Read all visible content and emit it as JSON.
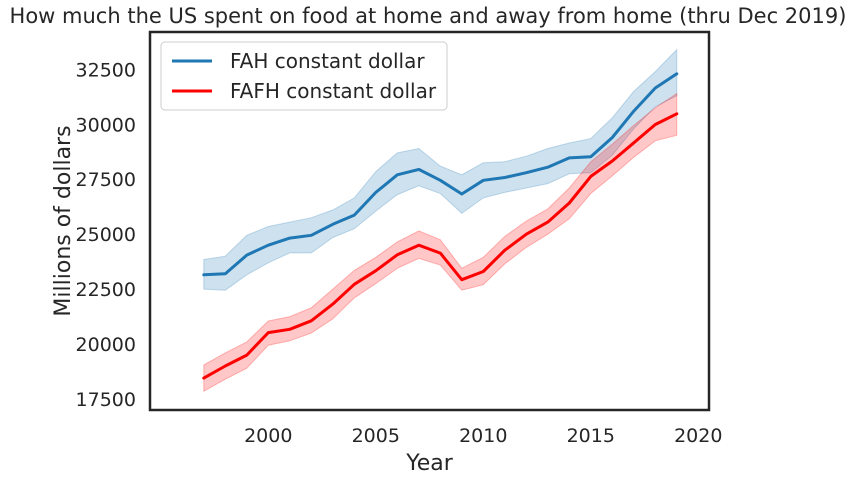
{
  "chart_data": {
    "type": "line",
    "title": "How much the US spent on food at home and away from home (thru Dec 2019)",
    "xlabel": "Year",
    "ylabel": "Millions of dollars",
    "xlim": [
      1994.5,
      2020.5
    ],
    "ylim": [
      17000,
      34200
    ],
    "xticks": [
      2000,
      2005,
      2010,
      2015,
      2020
    ],
    "yticks": [
      17500,
      20000,
      22500,
      25000,
      27500,
      30000,
      32500
    ],
    "grid": false,
    "legend": "top-left",
    "x": [
      1997,
      1998,
      1999,
      2000,
      2001,
      2002,
      2003,
      2004,
      2005,
      2006,
      2007,
      2008,
      2009,
      2010,
      2011,
      2012,
      2013,
      2014,
      2015,
      2016,
      2017,
      2018,
      2019
    ],
    "series": [
      {
        "name": "FAH constant dollar",
        "color": "#1f77b4",
        "values": [
          23150,
          23200,
          24050,
          24500,
          24820,
          24950,
          25450,
          25870,
          26900,
          27700,
          27950,
          27450,
          26830,
          27450,
          27580,
          27800,
          28050,
          28470,
          28520,
          29400,
          30600,
          31650,
          32300
        ],
        "lower": [
          22500,
          22450,
          23150,
          23700,
          24150,
          24150,
          24850,
          25250,
          26050,
          26800,
          27200,
          26850,
          25950,
          26650,
          26900,
          27100,
          27300,
          27750,
          27800,
          28600,
          29800,
          30800,
          31300
        ],
        "upper": [
          23850,
          24000,
          24950,
          25350,
          25550,
          25750,
          26100,
          26650,
          27850,
          28700,
          28900,
          28100,
          27700,
          28250,
          28300,
          28550,
          28900,
          29150,
          29350,
          30300,
          31500,
          32400,
          33400
        ]
      },
      {
        "name": "FAFH constant dollar",
        "color": "#ff0000",
        "values": [
          18450,
          19000,
          19500,
          20520,
          20670,
          21060,
          21820,
          22720,
          23340,
          24060,
          24500,
          24140,
          22930,
          23300,
          24270,
          25000,
          25550,
          26420,
          27630,
          28330,
          29160,
          29990,
          30480
        ],
        "lower": [
          17850,
          18400,
          18900,
          19950,
          20150,
          20500,
          21150,
          22100,
          22750,
          23450,
          23900,
          23600,
          22450,
          22700,
          23650,
          24400,
          25000,
          25700,
          26850,
          27650,
          28500,
          29250,
          29500
        ],
        "upper": [
          19050,
          19600,
          20100,
          21050,
          21250,
          21650,
          22500,
          23350,
          23950,
          24650,
          25150,
          24750,
          23450,
          23950,
          24900,
          25600,
          26150,
          27100,
          28300,
          29100,
          29950,
          30750,
          31400
        ]
      }
    ]
  }
}
